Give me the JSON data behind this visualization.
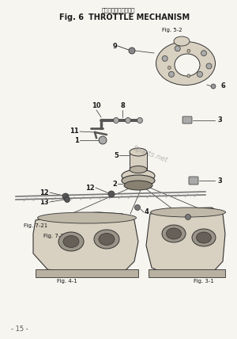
{
  "title_jp": "スロットルメカニズム",
  "title_fig": "Fig. 6",
  "title_en": "THROTTLE MECHANISM",
  "page_number": "- 15 -",
  "background_color": "#f7f5f0",
  "text_color": "#1a1a1a",
  "watermark": "8parts.net",
  "line_color": "#2a2a2a",
  "drawing_color": "#333333",
  "fill_light": "#d8d0c0",
  "fill_mid": "#b8b0a0",
  "fill_dark": "#888070"
}
